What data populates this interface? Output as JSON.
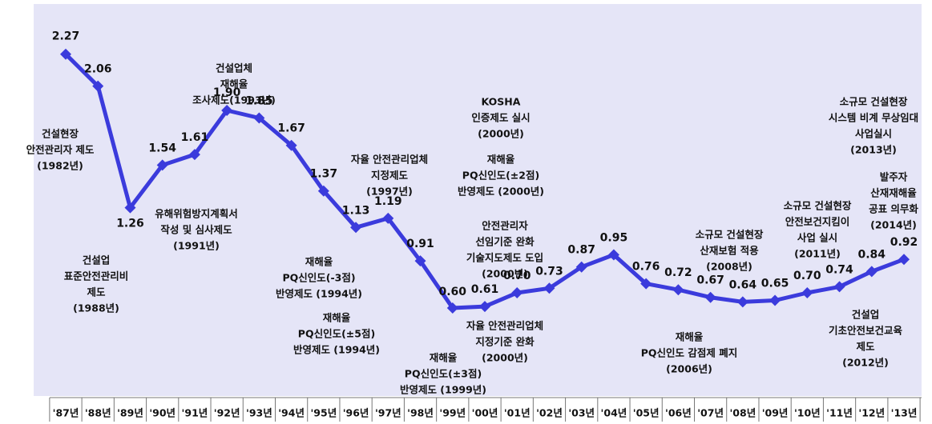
{
  "chart_data": {
    "type": "line",
    "categories": [
      "'87년",
      "'88년",
      "'89년",
      "'90년",
      "'91년",
      "'92년",
      "'93년",
      "'94년",
      "'95년",
      "'96년",
      "'97년",
      "'98년",
      "'99년",
      "'00년",
      "'01년",
      "'02년",
      "'03년",
      "'04년",
      "'05년",
      "'06년",
      "'07년",
      "'08년",
      "'09년",
      "'10년",
      "'11년",
      "'12년",
      "'13년"
    ],
    "series": [
      {
        "color": "#3b3bdc",
        "values": [
          2.27,
          2.06,
          1.26,
          1.54,
          1.61,
          1.9,
          1.85,
          1.67,
          1.37,
          1.13,
          1.19,
          0.91,
          0.6,
          0.61,
          0.7,
          0.73,
          0.87,
          0.95,
          0.76,
          0.72,
          0.67,
          0.64,
          0.65,
          0.7,
          0.74,
          0.84,
          0.92
        ],
        "value_labels": [
          "2.27",
          "2.06",
          "1.26",
          "1.54",
          "1.61",
          "1.90",
          "1.85",
          "1.67",
          "1.37",
          "1.13",
          "1.19",
          "0.91",
          "0.60",
          "0.61",
          "0.70",
          "0.73",
          "0.87",
          "0.95",
          "0.76",
          "0.72",
          "0.67",
          "0.64",
          "0.65",
          "0.70",
          "0.74",
          "0.84",
          "0.92"
        ]
      }
    ],
    "ylim": [
      0,
      2.5
    ],
    "annotations": [
      [
        "건설현장",
        "안전관리자 제도",
        "(1982년)"
      ],
      [
        "건설업",
        "표준안전관리비",
        "제도",
        "(1988년)"
      ],
      [
        "유해위험방지계획서",
        "작성 및 심사제도",
        "(1991년)"
      ],
      [
        "건설업체",
        "재해율",
        "조사제도(1993년)"
      ],
      [
        "재해율",
        "PQ신인도(-3점)",
        "반영제도 (1994년)"
      ],
      [
        "재해율",
        "PQ신인도(±5점)",
        "반영제도 (1994년)"
      ],
      [
        "자율 안전관리업체",
        "지정제도",
        "(1997년)"
      ],
      [
        "KOSHA",
        "인증제도 실시",
        "(2000년)"
      ],
      [
        "재해율",
        "PQ신인도(±2점)",
        "반영제도 (2000년)"
      ],
      [
        "안전관리자",
        "선임기준 완화",
        "기술지도제도 도입",
        "(2000년)"
      ],
      [
        "자율 안전관리업체",
        "지정기준 완화",
        "(2000년)"
      ],
      [
        "재해율",
        "PQ신인도(±3점)",
        "반영제도 (1999년)"
      ],
      [
        "소규모 건설현장",
        "산재보험 적용",
        "(2008년)"
      ],
      [
        "재해율",
        "PQ신인도 감점제 폐지",
        "(2006년)"
      ],
      [
        "소규모 건설현장",
        "안전보건지킴이",
        "사업 실시",
        "(2011년)"
      ],
      [
        "소규모 건설현장",
        "시스템 비계 무상임대",
        "사업실시",
        "(2013년)"
      ],
      [
        "발주자",
        "산재재해율",
        "공표 의무화",
        "(2014년)"
      ],
      [
        "건설업",
        "기초안전보건교육",
        "제도",
        "(2012년)"
      ]
    ]
  }
}
